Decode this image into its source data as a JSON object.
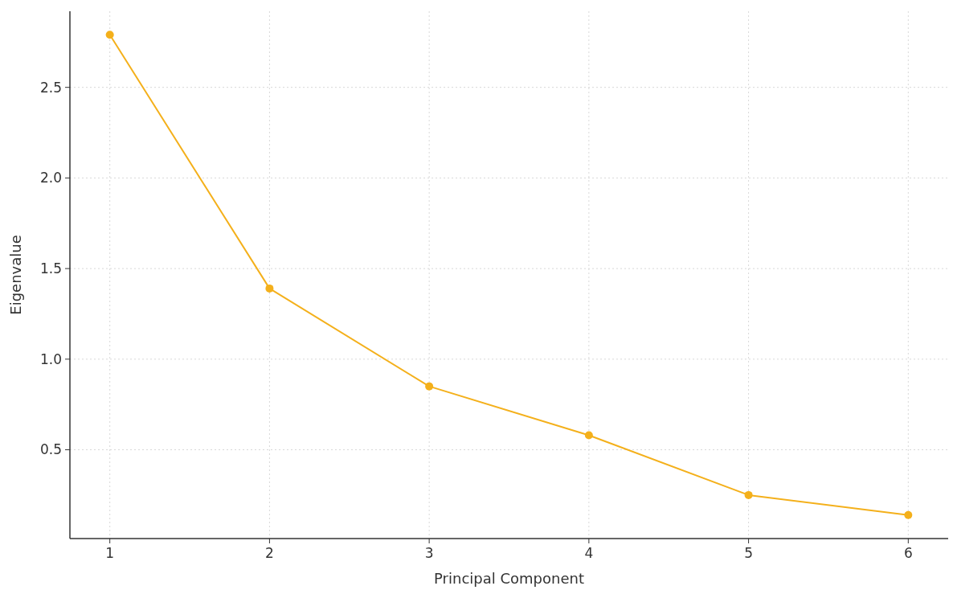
{
  "chart_data": {
    "type": "line",
    "xlabel": "Principal Component",
    "ylabel": "Eigenvalue",
    "x": [
      1,
      2,
      3,
      4,
      5,
      6
    ],
    "series": [
      {
        "color": "#f4b01b",
        "values": [
          2.79,
          1.39,
          0.85,
          0.58,
          0.25,
          0.14
        ]
      }
    ],
    "xlim": [
      0.75,
      6.25
    ],
    "ylim": [
      0.01,
      2.92
    ],
    "xticks": [
      1,
      2,
      3,
      4,
      5,
      6
    ],
    "yticks": [
      {
        "value": 0.5,
        "label": "0.5"
      },
      {
        "value": 1,
        "label": "1.0"
      },
      {
        "value": 1.5,
        "label": "1.5"
      },
      {
        "value": 2,
        "label": "2.0"
      },
      {
        "value": 2.5,
        "label": "2.5"
      }
    ],
    "grid": true,
    "marker": "circle",
    "line_style": "solid"
  }
}
